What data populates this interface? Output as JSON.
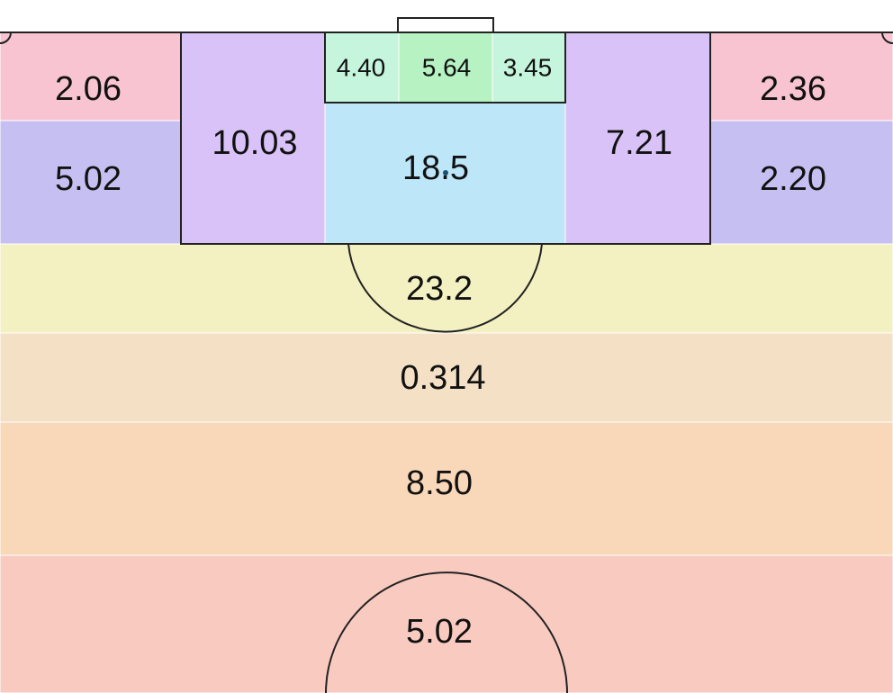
{
  "pitch": {
    "colors": {
      "line": "#222222",
      "zone_border": "#ffffff",
      "corner_pink": "#f9c4d1",
      "wide_box_blue": "#c6c0f2",
      "box_side_purple": "#d8c2f7",
      "six_yard_mint": "#c6f5dd",
      "goal_front_green": "#b6f2c2",
      "penalty_blue": "#bde6f9",
      "arc_band_yellow": "#f3f0c1",
      "mid_band_beige": "#f3e0c5",
      "deep_band_orange": "#f9d8b9",
      "halfway_salmon": "#f9cbc0"
    },
    "zones": {
      "left_corner": "2.06",
      "left_wide_box": "5.02",
      "left_box_side": "10.03",
      "six_yard_left": "4.40",
      "six_yard_center": "5.64",
      "six_yard_right": "3.45",
      "penalty_center": "18.5",
      "right_box_side": "7.21",
      "right_corner": "2.36",
      "right_wide_box": "2.20",
      "arc_band": "23.2",
      "mid_band": "0.314",
      "deep_band": "8.50",
      "halfway_band": "5.02"
    }
  }
}
